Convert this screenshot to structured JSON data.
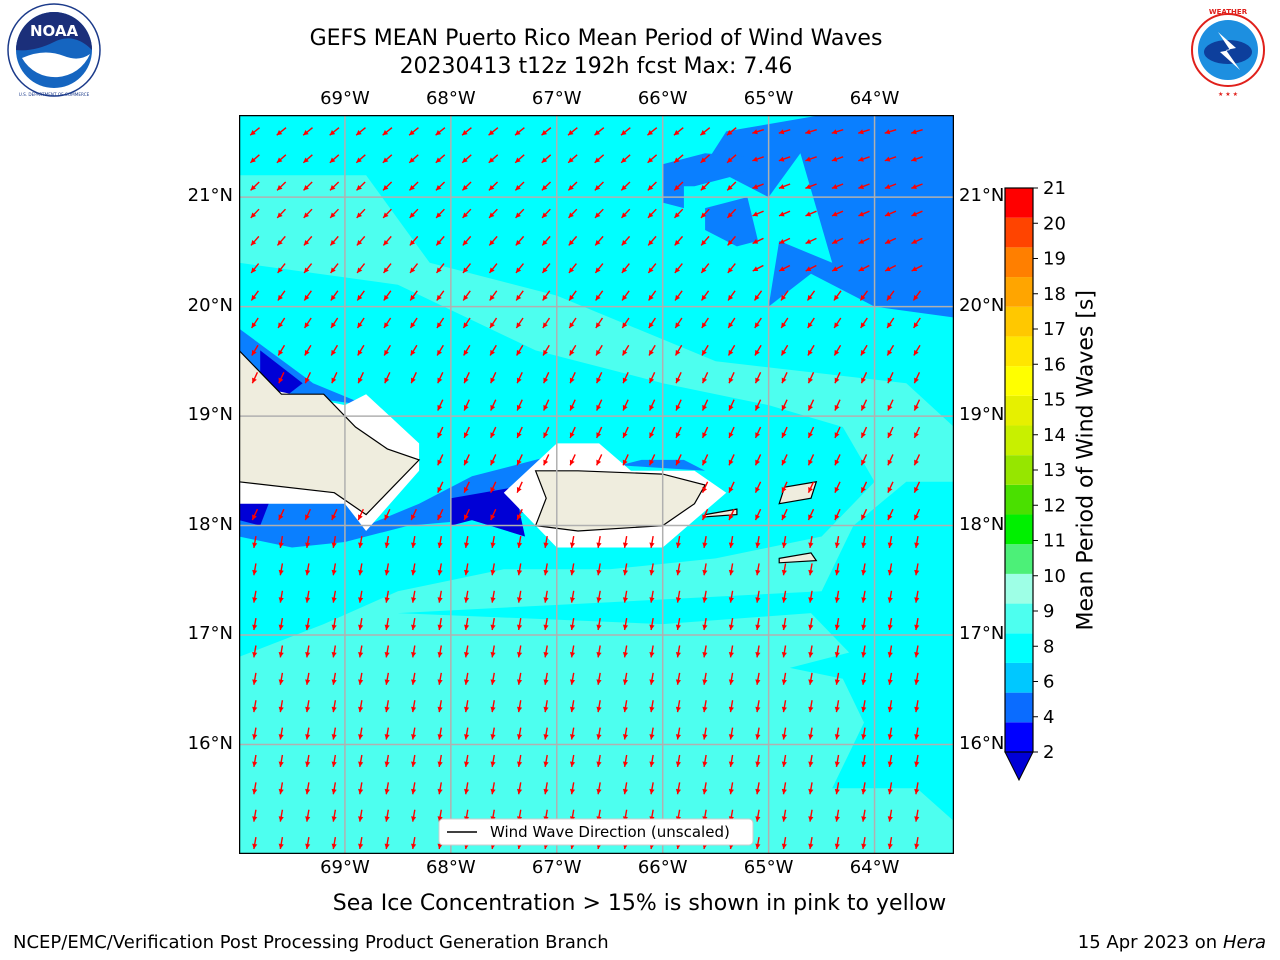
{
  "header": {
    "title_line1": "GEFS MEAN Puerto Rico Mean Period of Wind Waves",
    "title_line2": "20230413 t12z 192h fcst   Max: 7.46"
  },
  "logos": {
    "left": {
      "name": "noaa-logo",
      "text": "NOAA",
      "ring_text": "NATIONAL OCEANIC AND ATMOSPHERIC ADMINISTRATION · U.S. DEPARTMENT OF COMMERCE"
    },
    "right": {
      "name": "nws-logo",
      "ring_text": "NATIONAL WEATHER SERVICE"
    }
  },
  "map": {
    "lon_range": [
      -70.0,
      -63.25
    ],
    "lat_range": [
      15.0,
      21.75
    ],
    "lon_ticks": [
      {
        "value": -69,
        "label": "69°W"
      },
      {
        "value": -68,
        "label": "68°W"
      },
      {
        "value": -67,
        "label": "67°W"
      },
      {
        "value": -66,
        "label": "66°W"
      },
      {
        "value": -65,
        "label": "65°W"
      },
      {
        "value": -64,
        "label": "64°W"
      }
    ],
    "lat_ticks": [
      {
        "value": 21,
        "label": "21°N"
      },
      {
        "value": 20,
        "label": "20°N"
      },
      {
        "value": 19,
        "label": "19°N"
      },
      {
        "value": 18,
        "label": "18°N"
      },
      {
        "value": 17,
        "label": "17°N"
      },
      {
        "value": 16,
        "label": "16°N"
      }
    ],
    "arrow_direction_note": "",
    "legend_label": "Wind Wave Direction (unscaled)"
  },
  "colorbar": {
    "label": "Mean Period of Wind Waves [s]",
    "levels": [
      2,
      3,
      4,
      5,
      6,
      7,
      8,
      9,
      10,
      11,
      12,
      13,
      14,
      15,
      16,
      17,
      18,
      19,
      20,
      21
    ],
    "tick_labels": [
      "2",
      "4",
      "6",
      "8",
      "9",
      "10",
      "11",
      "12",
      "13",
      "14",
      "15",
      "16",
      "17",
      "18",
      "19",
      "20",
      "21"
    ],
    "colors": [
      "#0000ff",
      "#0a6cff",
      "#00c8ff",
      "#00ffff",
      "#4dffef",
      "#9effe6",
      "#4cf078",
      "#00f000",
      "#4ae000",
      "#96e600",
      "#c8f000",
      "#e6f000",
      "#ffff00",
      "#ffe600",
      "#ffc800",
      "#ffa500",
      "#ff7f00",
      "#ff4400",
      "#ff0000"
    ],
    "under_color": "#0000d6"
  },
  "colors": {
    "ocean_base": "#00ffff",
    "ocean_light": "#4dffef",
    "ocean_mid": "#0a7fff",
    "ocean_dark": "#0000d6",
    "land": "#efedde",
    "arrow": "#ff0000"
  },
  "footer": {
    "sea_ice_note": "Sea Ice Concentration > 15% is shown in pink to yellow",
    "left": "NCEP/EMC/Verification Post Processing Product Generation Branch",
    "right_prefix": "15 Apr 2023 on ",
    "right_machine": "Hera"
  }
}
